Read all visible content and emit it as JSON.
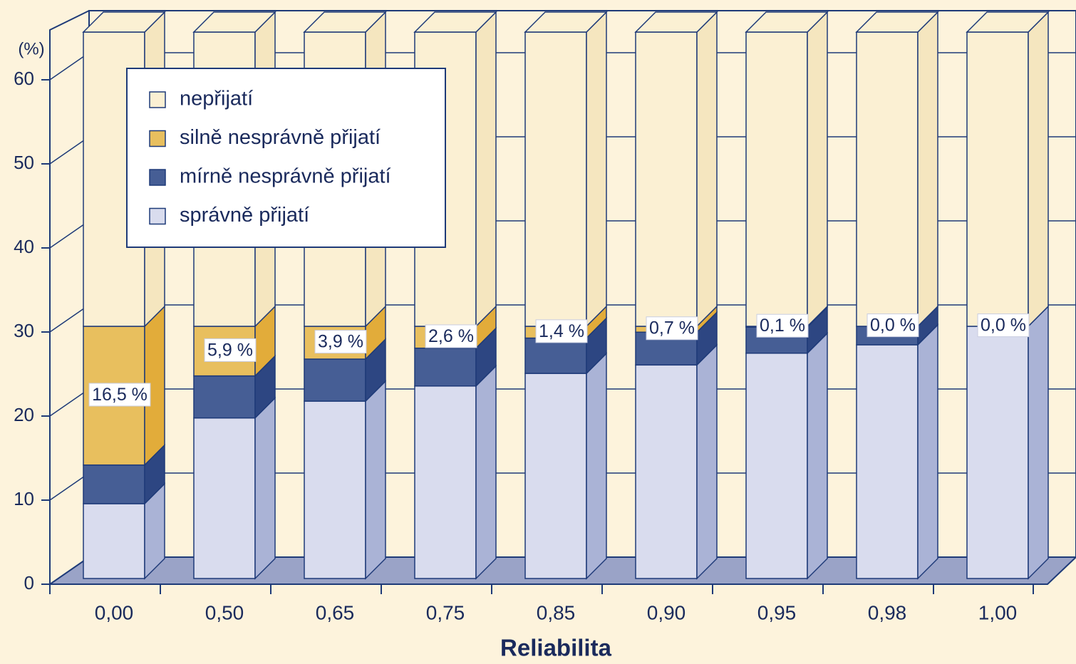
{
  "chart_data": {
    "type": "stacked-bar-3d",
    "y_label": "(%)",
    "x_label": "Reliabilita",
    "categories": [
      "0,00",
      "0,50",
      "0,65",
      "0,75",
      "0,85",
      "0,90",
      "0,95",
      "0,98",
      "1,00"
    ],
    "series": [
      {
        "name": "správně přijatí",
        "color": "#d9dcee",
        "side_color": "#aab3d6",
        "values": [
          8.9,
          19.1,
          21.1,
          22.9,
          24.4,
          25.4,
          26.8,
          27.8,
          30.0
        ]
      },
      {
        "name": "mírně nesprávně přijatí",
        "color": "#465e95",
        "side_color": "#2d4682",
        "values": [
          4.6,
          5.0,
          5.0,
          4.5,
          4.2,
          3.9,
          3.1,
          2.2,
          0.0
        ]
      },
      {
        "name": "silně nesprávně přijatí",
        "color": "#e8bf5e",
        "side_color": "#e2ac3a",
        "values": [
          16.5,
          5.9,
          3.9,
          2.6,
          1.4,
          0.7,
          0.1,
          0.0,
          0.0
        ],
        "value_labels": [
          "16,5 %",
          "5,9 %",
          "3,9 %",
          "2,6 %",
          "1,4 %",
          "0,7 %",
          "0,1 %",
          "0,0 %",
          "0,0 %"
        ]
      },
      {
        "name": "nepřijatí",
        "color": "#fbf0d3",
        "side_color": "#f5e6bf",
        "values": [
          35,
          35,
          35,
          35,
          35,
          35,
          35,
          35,
          35
        ]
      }
    ],
    "ylim": [
      0,
      65
    ],
    "yticks": [
      0,
      10,
      20,
      30,
      40,
      50,
      60
    ],
    "grid": true,
    "legend": "top-left"
  }
}
